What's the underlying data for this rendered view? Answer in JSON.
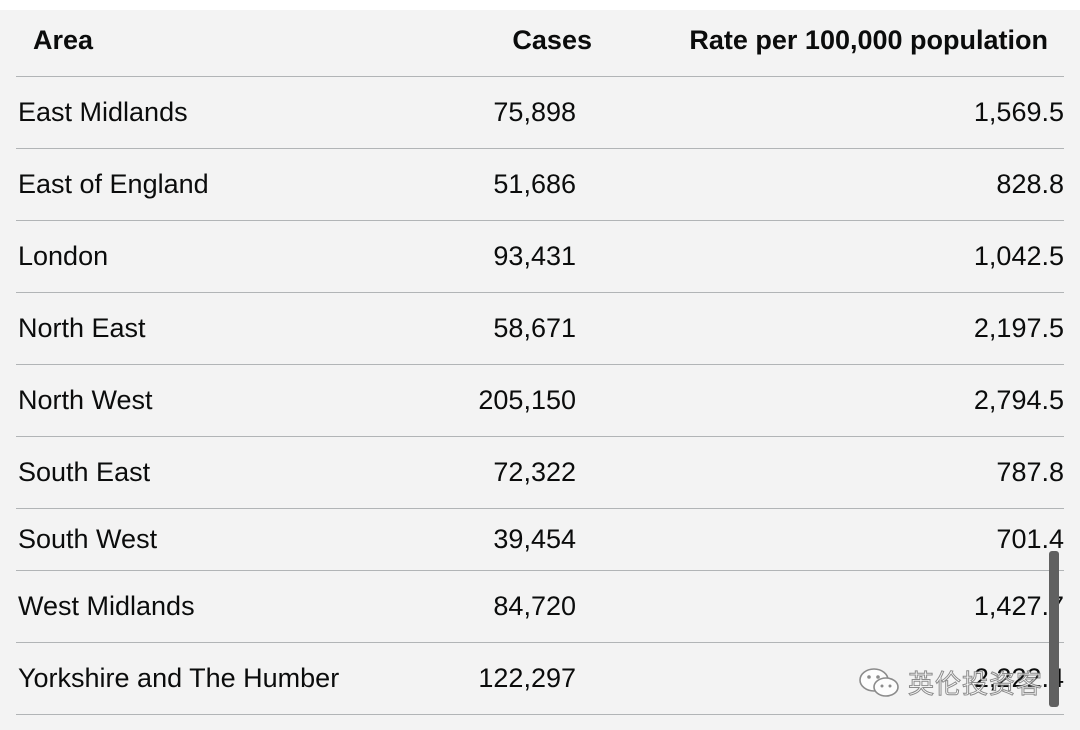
{
  "table": {
    "headers": {
      "area": "Area",
      "cases": "Cases",
      "rate": "Rate per 100,000 population"
    },
    "rows": [
      {
        "area": "East Midlands",
        "cases": "75,898",
        "rate": "1,569.5"
      },
      {
        "area": "East of England",
        "cases": "51,686",
        "rate": "828.8"
      },
      {
        "area": "London",
        "cases": "93,431",
        "rate": "1,042.5"
      },
      {
        "area": "North East",
        "cases": "58,671",
        "rate": "2,197.5"
      },
      {
        "area": "North West",
        "cases": "205,150",
        "rate": "2,794.5"
      },
      {
        "area": "South East",
        "cases": "72,322",
        "rate": "787.8"
      },
      {
        "area": "South West",
        "cases": "39,454",
        "rate": "701.4"
      },
      {
        "area": "West Midlands",
        "cases": "84,720",
        "rate": "1,427.7"
      },
      {
        "area": "Yorkshire and The Humber",
        "cases": "122,297",
        "rate": "2,222.4"
      }
    ]
  },
  "watermark": {
    "text": "英伦投资客",
    "icon": "wechat-icon"
  },
  "colors": {
    "background": "#f3f3f3",
    "divider": "#b1b4b6",
    "text": "#0b0c0c",
    "scrollbar": "#606060"
  }
}
